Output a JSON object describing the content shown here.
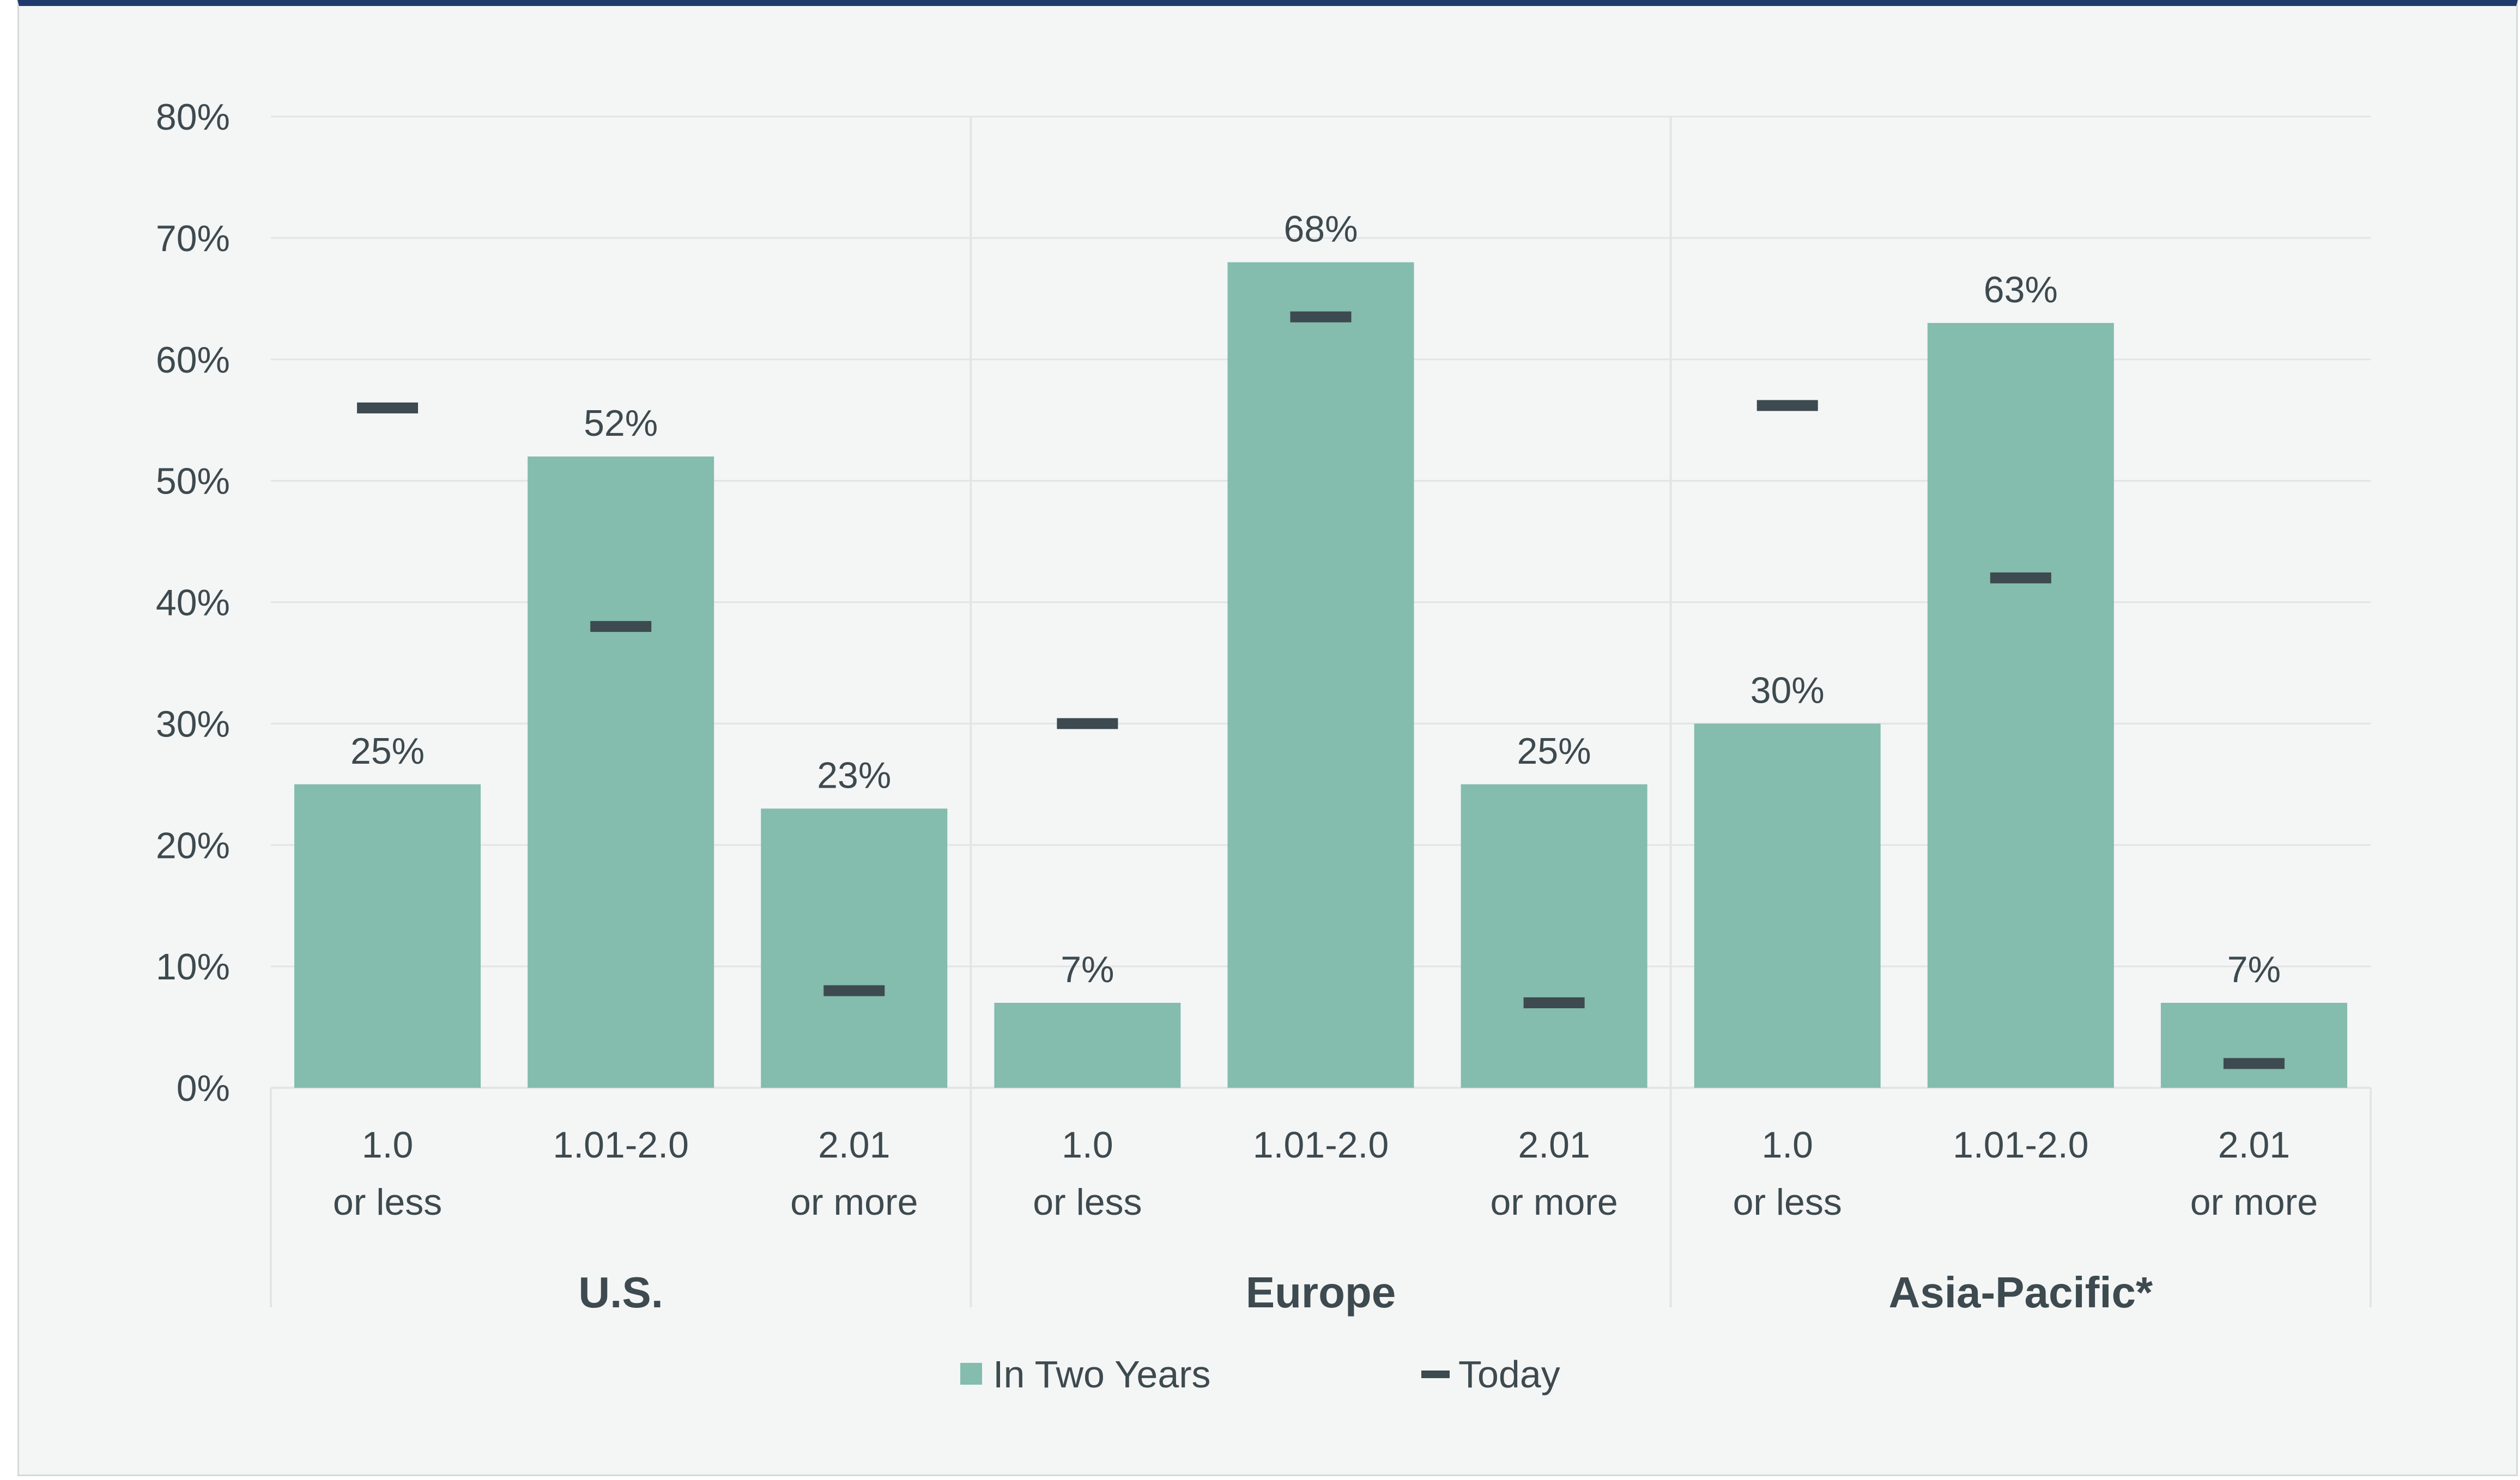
{
  "chart_data": {
    "type": "bar",
    "groups": [
      "U.S.",
      "Europe",
      "Asia-Pacific*"
    ],
    "categories": [
      [
        "1.0",
        "or less"
      ],
      [
        "1.01-2.0"
      ],
      [
        "2.01",
        "or more"
      ]
    ],
    "series": [
      {
        "name": "In Two Years",
        "kind": "bar",
        "values": [
          [
            25,
            52,
            23
          ],
          [
            7,
            68,
            25
          ],
          [
            30,
            63,
            7
          ]
        ]
      },
      {
        "name": "Today",
        "kind": "marker",
        "values": [
          [
            56,
            38,
            8
          ],
          [
            30,
            63.5,
            7
          ],
          [
            56.2,
            42,
            2
          ]
        ]
      }
    ],
    "data_labels": [
      [
        "25%",
        "52%",
        "23%"
      ],
      [
        "7%",
        "68%",
        "25%"
      ],
      [
        "30%",
        "63%",
        "7%"
      ]
    ],
    "y_ticks": [
      "0%",
      "10%",
      "20%",
      "30%",
      "40%",
      "50%",
      "60%",
      "70%",
      "80%"
    ],
    "ylim": [
      0,
      80
    ],
    "grid": true,
    "legend_position": "bottom-center",
    "colors": {
      "bar": "#84bcae",
      "marker": "#3d4a4f",
      "text": "#3d4a4f",
      "grid": "#e2e4e5",
      "frame_top": "#1f3b6b"
    }
  }
}
